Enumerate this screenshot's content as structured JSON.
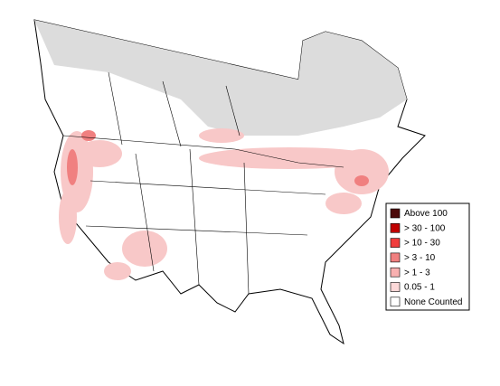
{
  "legend": {
    "items": [
      {
        "label": "Above 100",
        "color": "#4d0a0a"
      },
      {
        "label": "> 30 - 100",
        "color": "#c00000"
      },
      {
        "label": "> 10 - 30",
        "color": "#f03c3c"
      },
      {
        "label": "> 3 - 10",
        "color": "#f08080"
      },
      {
        "label": "> 1 - 3",
        "color": "#f8b0b0"
      },
      {
        "label": "0.05 - 1",
        "color": "#fcd8d8"
      },
      {
        "label": "None Counted",
        "color": "#ffffff"
      }
    ]
  }
}
